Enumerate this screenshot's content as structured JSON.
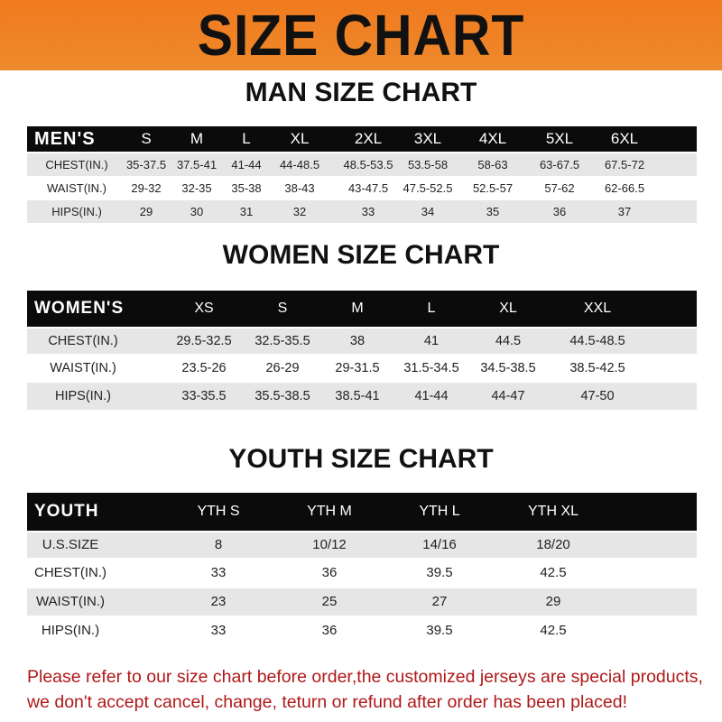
{
  "banner_title": "SIZE CHART",
  "men": {
    "title": "MAN SIZE CHART",
    "header": [
      "MEN'S",
      "S",
      "M",
      "L",
      "XL",
      "2XL",
      "3XL",
      "4XL",
      "5XL",
      "6XL"
    ],
    "rows": [
      [
        "CHEST(IN.)",
        "35-37.5",
        "37.5-41",
        "41-44",
        "44-48.5",
        "48.5-53.5",
        "53.5-58",
        "58-63",
        "63-67.5",
        "67.5-72"
      ],
      [
        "WAIST(IN.)",
        "29-32",
        "32-35",
        "35-38",
        "38-43",
        "43-47.5",
        "47.5-52.5",
        "52.5-57",
        "57-62",
        "62-66.5"
      ],
      [
        "HIPS(IN.)",
        "29",
        "30",
        "31",
        "32",
        "33",
        "34",
        "35",
        "36",
        "37"
      ]
    ]
  },
  "women": {
    "title": "WOMEN SIZE CHART",
    "header": [
      "WOMEN'S",
      "XS",
      "S",
      "M",
      "L",
      "XL",
      "XXL"
    ],
    "rows": [
      [
        "CHEST(IN.)",
        "29.5-32.5",
        "32.5-35.5",
        "38",
        "41",
        "44.5",
        "44.5-48.5"
      ],
      [
        "WAIST(IN.)",
        "23.5-26",
        "26-29",
        "29-31.5",
        "31.5-34.5",
        "34.5-38.5",
        "38.5-42.5"
      ],
      [
        "HIPS(IN.)",
        "33-35.5",
        "35.5-38.5",
        "38.5-41",
        "41-44",
        "44-47",
        "47-50"
      ]
    ]
  },
  "youth": {
    "title": "YOUTH SIZE CHART",
    "header": [
      "YOUTH",
      "YTH S",
      "YTH M",
      "YTH L",
      "YTH XL"
    ],
    "rows": [
      [
        "U.S.SIZE",
        "8",
        "10/12",
        "14/16",
        "18/20"
      ],
      [
        "CHEST(IN.)",
        "33",
        "36",
        "39.5",
        "42.5"
      ],
      [
        "WAIST(IN.)",
        "23",
        "25",
        "27",
        "29"
      ],
      [
        "HIPS(IN.)",
        "33",
        "36",
        "39.5",
        "42.5"
      ]
    ]
  },
  "note": "Please refer to our size chart before order,the customized jerseys are special products, we don't accept cancel, change, teturn or refund after order has been placed!",
  "colors": {
    "banner": "#f07a1e",
    "header_row": "#0b0b0b",
    "stripe": "#e6e6e6",
    "note": "#b01818"
  }
}
